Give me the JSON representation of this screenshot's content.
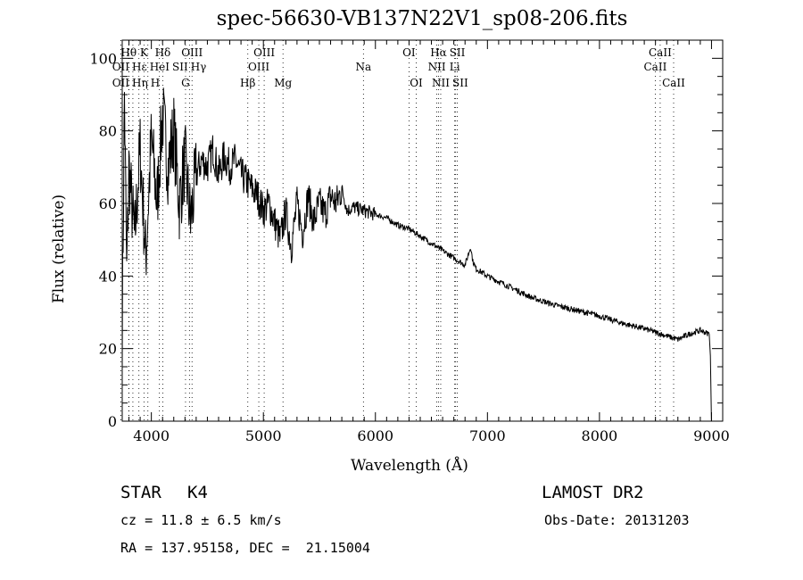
{
  "chart_data": {
    "type": "line",
    "title": "spec-56630-VB137N22V1_sp08-206.fits",
    "xlabel": "Wavelength (Å)",
    "ylabel": "Flux (relative)",
    "xlim": [
      3740,
      9100
    ],
    "ylim": [
      0,
      105
    ],
    "xticks": [
      4000,
      5000,
      6000,
      7000,
      8000,
      9000
    ],
    "xtick_labels": [
      "4000",
      "5000",
      "6000",
      "7000",
      "8000",
      "9000"
    ],
    "yticks": [
      0,
      20,
      40,
      60,
      80,
      100
    ],
    "ytick_labels": [
      "0",
      "20",
      "40",
      "60",
      "80",
      "100"
    ],
    "grid": false,
    "series": [
      {
        "name": "spectrum",
        "x": [
          3740,
          3760,
          3780,
          3800,
          3850,
          3900,
          3950,
          4000,
          4050,
          4100,
          4150,
          4200,
          4250,
          4300,
          4350,
          4400,
          4450,
          4500,
          4550,
          4600,
          4650,
          4700,
          4750,
          4800,
          4850,
          4900,
          4950,
          5000,
          5050,
          5100,
          5150,
          5200,
          5250,
          5300,
          5350,
          5400,
          5450,
          5500,
          5550,
          5600,
          5650,
          5700,
          5750,
          5800,
          5900,
          6000,
          6100,
          6200,
          6300,
          6400,
          6500,
          6600,
          6700,
          6800,
          6850,
          6870,
          6900,
          7000,
          7200,
          7400,
          7600,
          7800,
          8000,
          8200,
          8400,
          8600,
          8700,
          8800,
          8900,
          8980,
          8990,
          9000
        ],
        "y": [
          25,
          90,
          40,
          70,
          50,
          75,
          45,
          78,
          60,
          85,
          70,
          80,
          60,
          72,
          55,
          68,
          72,
          70,
          75,
          68,
          73,
          70,
          72,
          68,
          66,
          64,
          62,
          58,
          60,
          55,
          50,
          58,
          48,
          60,
          52,
          62,
          55,
          60,
          57,
          62,
          60,
          64,
          58,
          59,
          58,
          57,
          56,
          54,
          53,
          51,
          49,
          47,
          45,
          43,
          48,
          44,
          42,
          40,
          37,
          34,
          32,
          30.5,
          29,
          27,
          25.5,
          23.5,
          22.5,
          24,
          25,
          24,
          18,
          0
        ]
      }
    ],
    "line_markers": [
      {
        "label": "Hθ",
        "wavelength": 3798,
        "row": 1
      },
      {
        "label": "K",
        "wavelength": 3934,
        "row": 1
      },
      {
        "label": "Hδ",
        "wavelength": 4102,
        "row": 1
      },
      {
        "label": "OIII",
        "wavelength": 4363,
        "row": 1
      },
      {
        "label": "OIII",
        "wavelength": 5007,
        "row": 1
      },
      {
        "label": "OI",
        "wavelength": 6300,
        "row": 1
      },
      {
        "label": "Hα",
        "wavelength": 6563,
        "row": 1
      },
      {
        "label": "SII",
        "wavelength": 6716,
        "row": 1
      },
      {
        "label": "CaII",
        "wavelength": 8542,
        "row": 1
      },
      {
        "label": "OII",
        "wavelength": 3727,
        "row": 2
      },
      {
        "label": "Hε",
        "wavelength": 3800,
        "row": 2
      },
      {
        "label": "HeI",
        "wavelength": 3889,
        "row": 2
      },
      {
        "label": "SII",
        "wavelength": 4072,
        "row": 2
      },
      {
        "label": "Hγ",
        "wavelength": 4340,
        "row": 2
      },
      {
        "label": "OIII",
        "wavelength": 4959,
        "row": 2
      },
      {
        "label": "Na",
        "wavelength": 5893,
        "row": 2
      },
      {
        "label": "NII",
        "wavelength": 6548,
        "row": 2
      },
      {
        "label": "Li",
        "wavelength": 6708,
        "row": 2
      },
      {
        "label": "CaII",
        "wavelength": 8498,
        "row": 2
      },
      {
        "label": "OII",
        "wavelength": 3727,
        "row": 3
      },
      {
        "label": "Hη",
        "wavelength": 3835,
        "row": 3
      },
      {
        "label": "H",
        "wavelength": 3969,
        "row": 3
      },
      {
        "label": "G",
        "wavelength": 4305,
        "row": 3
      },
      {
        "label": "Hβ",
        "wavelength": 4861,
        "row": 3
      },
      {
        "label": "Mg",
        "wavelength": 5175,
        "row": 3
      },
      {
        "label": "OI",
        "wavelength": 6364,
        "row": 3
      },
      {
        "label": "NII",
        "wavelength": 6583,
        "row": 3
      },
      {
        "label": "SII",
        "wavelength": 6731,
        "row": 3
      },
      {
        "label": "CaII",
        "wavelength": 8662,
        "row": 3
      }
    ]
  },
  "info": {
    "class": "STAR",
    "subclass": "K4",
    "survey": "LAMOST DR2",
    "cz": "cz = 11.8 ± 6.5 km/s",
    "obs_date": "Obs-Date: 20131203",
    "coords": "RA = 137.95158, DEC =  21.15004"
  }
}
